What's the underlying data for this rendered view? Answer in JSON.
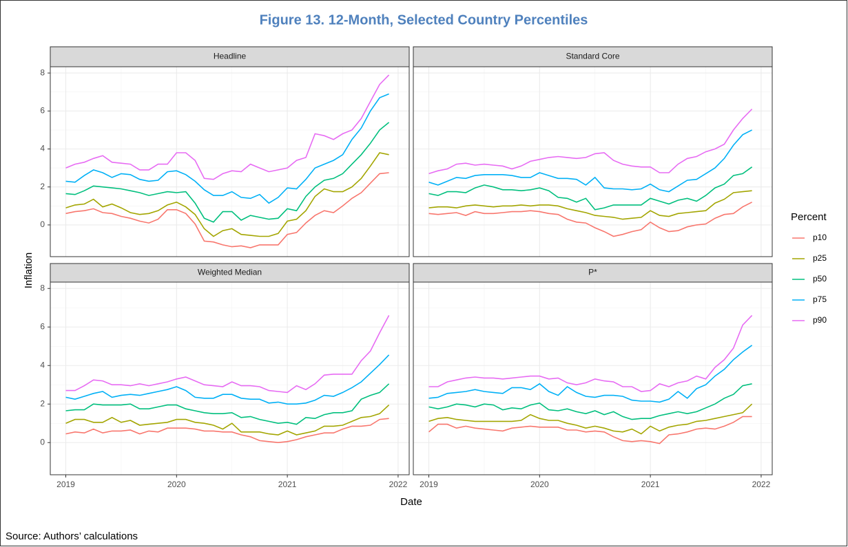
{
  "chart_data": {
    "type": "line",
    "title": "Figure 13. 12-Month, Selected Country Percentiles",
    "x_label": "Date",
    "y_label": "Inflation",
    "legend_title": "Percent",
    "xlim": [
      2018.86,
      2022.1
    ],
    "ylim": [
      -1.67,
      8.33
    ],
    "xticks": [
      2019,
      2020,
      2021,
      2022
    ],
    "yticks": [
      0,
      2,
      4,
      6,
      8
    ],
    "grid": true,
    "series": [
      {
        "name": "p10",
        "color": "#F8766D"
      },
      {
        "name": "p25",
        "color": "#A3A500"
      },
      {
        "name": "p50",
        "color": "#00BF7D"
      },
      {
        "name": "p75",
        "color": "#00B0F6"
      },
      {
        "name": "p90",
        "color": "#E76BF3"
      }
    ],
    "x": [
      2019,
      2019.083,
      2019.167,
      2019.25,
      2019.333,
      2019.417,
      2019.5,
      2019.583,
      2019.667,
      2019.75,
      2019.833,
      2019.917,
      2020,
      2020.083,
      2020.167,
      2020.25,
      2020.333,
      2020.417,
      2020.5,
      2020.583,
      2020.667,
      2020.75,
      2020.833,
      2020.917,
      2021,
      2021.083,
      2021.167,
      2021.25,
      2021.333,
      2021.417,
      2021.5,
      2021.583,
      2021.667,
      2021.75,
      2021.833,
      2021.917
    ],
    "panels": [
      {
        "title": "Headline",
        "values": [
          [
            0.6,
            0.7,
            0.75,
            0.85,
            0.65,
            0.6,
            0.45,
            0.35,
            0.2,
            0.1,
            0.3,
            0.8,
            0.8,
            0.6,
            0.05,
            -0.85,
            -0.9,
            -1.05,
            -1.15,
            -1.1,
            -1.2,
            -1.05,
            -1.05,
            -1.05,
            -0.5,
            -0.4,
            0.1,
            0.5,
            0.75,
            0.65,
            1.0,
            1.4,
            1.7,
            2.2,
            2.7,
            2.75
          ],
          [
            0.9,
            1.05,
            1.1,
            1.35,
            0.95,
            1.1,
            0.9,
            0.65,
            0.55,
            0.6,
            0.75,
            1.05,
            1.2,
            0.95,
            0.55,
            -0.2,
            -0.6,
            -0.3,
            -0.2,
            -0.5,
            -0.55,
            -0.6,
            -0.6,
            -0.45,
            0.2,
            0.3,
            0.75,
            1.5,
            1.9,
            1.75,
            1.75,
            2.0,
            2.45,
            3.1,
            3.8,
            3.7
          ],
          [
            1.65,
            1.6,
            1.8,
            2.05,
            2.0,
            1.95,
            1.9,
            1.8,
            1.7,
            1.55,
            1.65,
            1.75,
            1.7,
            1.75,
            1.15,
            0.35,
            0.15,
            0.7,
            0.7,
            0.25,
            0.5,
            0.4,
            0.3,
            0.35,
            0.85,
            0.75,
            1.5,
            2.0,
            2.35,
            2.45,
            2.7,
            3.2,
            3.7,
            4.3,
            5.0,
            5.4
          ],
          [
            2.3,
            2.25,
            2.6,
            2.9,
            2.75,
            2.5,
            2.7,
            2.65,
            2.4,
            2.3,
            2.35,
            2.8,
            2.85,
            2.65,
            2.3,
            1.85,
            1.55,
            1.55,
            1.75,
            1.45,
            1.4,
            1.6,
            1.15,
            1.45,
            1.95,
            1.9,
            2.4,
            3.0,
            3.2,
            3.4,
            3.7,
            4.5,
            5.1,
            6.0,
            6.7,
            6.9
          ],
          [
            3.0,
            3.2,
            3.3,
            3.5,
            3.65,
            3.3,
            3.25,
            3.2,
            2.9,
            2.9,
            3.2,
            3.2,
            3.8,
            3.8,
            3.4,
            2.45,
            2.4,
            2.7,
            2.85,
            2.8,
            3.2,
            3.0,
            2.8,
            2.9,
            3.0,
            3.4,
            3.55,
            4.8,
            4.7,
            4.5,
            4.8,
            5.0,
            5.6,
            6.5,
            7.4,
            7.9
          ]
        ]
      },
      {
        "title": "Standard Core",
        "values": [
          [
            0.6,
            0.55,
            0.6,
            0.65,
            0.5,
            0.7,
            0.6,
            0.6,
            0.65,
            0.7,
            0.7,
            0.75,
            0.7,
            0.6,
            0.55,
            0.3,
            0.15,
            0.1,
            -0.15,
            -0.35,
            -0.6,
            -0.5,
            -0.35,
            -0.25,
            0.15,
            -0.15,
            -0.35,
            -0.3,
            -0.1,
            0.0,
            0.05,
            0.35,
            0.55,
            0.6,
            0.95,
            1.2
          ],
          [
            0.9,
            0.95,
            0.95,
            0.9,
            1.0,
            1.05,
            1.0,
            0.95,
            1.0,
            1.0,
            1.05,
            1.0,
            1.05,
            1.05,
            1.0,
            0.85,
            0.75,
            0.65,
            0.5,
            0.45,
            0.4,
            0.3,
            0.35,
            0.4,
            0.75,
            0.5,
            0.45,
            0.6,
            0.65,
            0.7,
            0.75,
            1.15,
            1.35,
            1.7,
            1.75,
            1.8
          ],
          [
            1.65,
            1.55,
            1.75,
            1.75,
            1.7,
            1.95,
            2.1,
            2.0,
            1.85,
            1.85,
            1.8,
            1.85,
            1.95,
            1.8,
            1.45,
            1.4,
            1.2,
            1.4,
            0.8,
            0.9,
            1.05,
            1.05,
            1.05,
            1.05,
            1.4,
            1.25,
            1.1,
            1.3,
            1.4,
            1.25,
            1.55,
            1.95,
            2.15,
            2.6,
            2.7,
            3.05
          ],
          [
            2.25,
            2.1,
            2.3,
            2.5,
            2.45,
            2.6,
            2.65,
            2.65,
            2.65,
            2.6,
            2.5,
            2.5,
            2.75,
            2.6,
            2.45,
            2.45,
            2.4,
            2.1,
            2.5,
            1.95,
            1.9,
            1.9,
            1.85,
            1.9,
            2.15,
            1.85,
            1.75,
            2.05,
            2.35,
            2.4,
            2.7,
            3.0,
            3.5,
            4.2,
            4.75,
            5.0
          ],
          [
            2.7,
            2.85,
            2.95,
            3.2,
            3.25,
            3.15,
            3.2,
            3.15,
            3.1,
            2.95,
            3.1,
            3.35,
            3.45,
            3.55,
            3.6,
            3.55,
            3.5,
            3.55,
            3.75,
            3.8,
            3.4,
            3.2,
            3.1,
            3.05,
            3.05,
            2.75,
            2.75,
            3.2,
            3.5,
            3.6,
            3.85,
            4.0,
            4.25,
            5.0,
            5.6,
            6.1
          ]
        ]
      },
      {
        "title": "Weighted Median",
        "values": [
          [
            0.45,
            0.55,
            0.5,
            0.7,
            0.5,
            0.6,
            0.6,
            0.65,
            0.45,
            0.6,
            0.55,
            0.75,
            0.75,
            0.75,
            0.7,
            0.6,
            0.6,
            0.55,
            0.55,
            0.4,
            0.3,
            0.1,
            0.05,
            0.0,
            0.05,
            0.15,
            0.3,
            0.4,
            0.5,
            0.5,
            0.7,
            0.85,
            0.85,
            0.9,
            1.2,
            1.25
          ],
          [
            1.0,
            1.2,
            1.2,
            1.05,
            1.05,
            1.3,
            1.05,
            1.15,
            0.9,
            0.95,
            1.0,
            1.05,
            1.2,
            1.2,
            1.05,
            1.0,
            0.9,
            0.7,
            1.0,
            0.55,
            0.55,
            0.55,
            0.45,
            0.4,
            0.6,
            0.4,
            0.5,
            0.6,
            0.85,
            0.85,
            0.9,
            1.1,
            1.3,
            1.35,
            1.5,
            1.95
          ],
          [
            1.65,
            1.7,
            1.7,
            2.0,
            1.95,
            1.95,
            1.95,
            2.0,
            1.75,
            1.75,
            1.85,
            1.95,
            1.95,
            1.75,
            1.65,
            1.55,
            1.5,
            1.5,
            1.55,
            1.3,
            1.35,
            1.2,
            1.1,
            1.0,
            1.05,
            0.95,
            1.3,
            1.25,
            1.45,
            1.55,
            1.55,
            1.65,
            2.25,
            2.45,
            2.6,
            3.05
          ],
          [
            2.35,
            2.25,
            2.4,
            2.55,
            2.65,
            2.35,
            2.45,
            2.5,
            2.45,
            2.55,
            2.65,
            2.75,
            2.9,
            2.7,
            2.35,
            2.3,
            2.3,
            2.5,
            2.5,
            2.3,
            2.25,
            2.25,
            2.05,
            2.1,
            2.0,
            2.0,
            2.05,
            2.2,
            2.45,
            2.4,
            2.6,
            2.85,
            3.15,
            3.6,
            4.05,
            4.55
          ],
          [
            2.7,
            2.7,
            2.95,
            3.25,
            3.2,
            3.0,
            3.0,
            2.95,
            3.05,
            2.95,
            3.05,
            3.15,
            3.3,
            3.4,
            3.2,
            3.0,
            2.95,
            2.9,
            3.15,
            2.95,
            2.95,
            2.9,
            2.7,
            2.65,
            2.6,
            2.95,
            2.75,
            3.05,
            3.5,
            3.55,
            3.55,
            3.55,
            4.25,
            4.75,
            5.7,
            6.6
          ]
        ]
      },
      {
        "title": "P*",
        "values": [
          [
            0.55,
            0.95,
            0.95,
            0.75,
            0.85,
            0.75,
            0.7,
            0.65,
            0.6,
            0.75,
            0.8,
            0.85,
            0.8,
            0.8,
            0.8,
            0.65,
            0.65,
            0.55,
            0.6,
            0.55,
            0.3,
            0.1,
            0.05,
            0.1,
            0.05,
            -0.05,
            0.4,
            0.45,
            0.55,
            0.7,
            0.75,
            0.7,
            0.85,
            1.05,
            1.35,
            1.35
          ],
          [
            1.1,
            1.25,
            1.3,
            1.2,
            1.15,
            1.1,
            1.1,
            1.1,
            1.1,
            1.1,
            1.15,
            1.45,
            1.25,
            1.15,
            1.15,
            1.0,
            0.9,
            0.75,
            0.85,
            0.75,
            0.6,
            0.55,
            0.7,
            0.45,
            0.85,
            0.6,
            0.8,
            0.9,
            0.95,
            1.1,
            1.15,
            1.25,
            1.35,
            1.45,
            1.55,
            2.0
          ],
          [
            1.85,
            1.75,
            1.85,
            2.0,
            1.95,
            1.85,
            2.0,
            1.95,
            1.7,
            1.8,
            1.75,
            1.95,
            2.05,
            1.7,
            1.65,
            1.75,
            1.6,
            1.5,
            1.65,
            1.45,
            1.6,
            1.35,
            1.2,
            1.25,
            1.25,
            1.4,
            1.5,
            1.6,
            1.5,
            1.6,
            1.8,
            2.0,
            2.3,
            2.5,
            2.95,
            3.05
          ],
          [
            2.3,
            2.35,
            2.55,
            2.6,
            2.65,
            2.75,
            2.65,
            2.6,
            2.55,
            2.85,
            2.85,
            2.75,
            3.05,
            2.65,
            2.45,
            2.9,
            2.6,
            2.4,
            2.35,
            2.45,
            2.45,
            2.4,
            2.2,
            2.15,
            2.15,
            2.1,
            2.25,
            2.65,
            2.3,
            2.8,
            3.0,
            3.45,
            3.8,
            4.3,
            4.7,
            5.05
          ],
          [
            2.9,
            2.9,
            3.15,
            3.25,
            3.35,
            3.4,
            3.35,
            3.35,
            3.3,
            3.35,
            3.4,
            3.45,
            3.45,
            3.3,
            3.35,
            3.1,
            3.0,
            3.1,
            3.3,
            3.2,
            3.15,
            2.9,
            2.9,
            2.65,
            2.7,
            3.05,
            2.9,
            3.1,
            3.2,
            3.45,
            3.3,
            3.9,
            4.3,
            4.9,
            6.1,
            6.6
          ]
        ]
      }
    ]
  },
  "source": "Source: Authors’ calculations"
}
